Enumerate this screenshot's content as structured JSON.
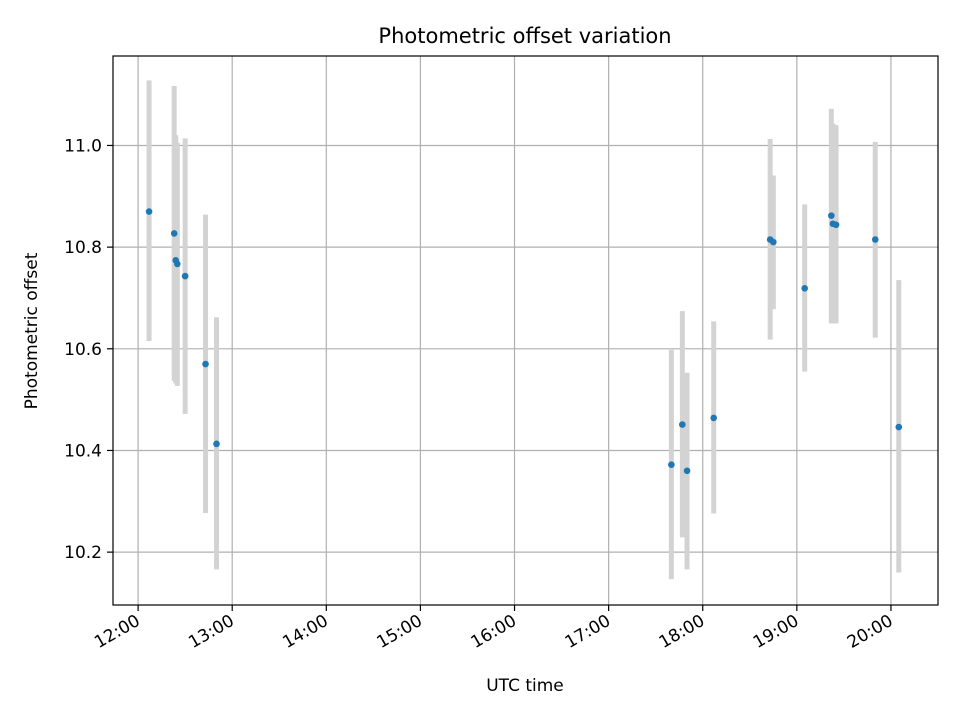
{
  "chart_data": {
    "type": "scatter",
    "title": "Photometric offset variation",
    "xlabel": "UTC time",
    "ylabel": "Photometric offset",
    "x_kind": "time",
    "xlim": [
      "11:44",
      "20:30"
    ],
    "ylim": [
      10.096,
      11.176
    ],
    "x_ticks": [
      "12:00",
      "13:00",
      "14:00",
      "15:00",
      "16:00",
      "17:00",
      "18:00",
      "19:00",
      "20:00"
    ],
    "y_ticks": [
      "10.2",
      "10.4",
      "10.6",
      "10.8",
      "11.0"
    ],
    "grid": true,
    "marker_color": "#1f77b4",
    "errorbar_color": "#d3d3d3",
    "points": [
      {
        "time": "12:07",
        "y": 10.87,
        "lo": 10.615,
        "hi": 11.128
      },
      {
        "time": "12:23",
        "y": 10.827,
        "lo": 10.537,
        "hi": 11.117
      },
      {
        "time": "12:24",
        "y": 10.774,
        "lo": 10.532,
        "hi": 11.02
      },
      {
        "time": "12:25",
        "y": 10.767,
        "lo": 10.527,
        "hi": 11.005
      },
      {
        "time": "12:30",
        "y": 10.743,
        "lo": 10.472,
        "hi": 11.014
      },
      {
        "time": "12:43",
        "y": 10.57,
        "lo": 10.277,
        "hi": 10.864
      },
      {
        "time": "12:50",
        "y": 10.413,
        "lo": 10.166,
        "hi": 10.662
      },
      {
        "time": "17:40",
        "y": 10.372,
        "lo": 10.147,
        "hi": 10.598
      },
      {
        "time": "17:47",
        "y": 10.451,
        "lo": 10.229,
        "hi": 10.674
      },
      {
        "time": "17:50",
        "y": 10.36,
        "lo": 10.166,
        "hi": 10.553
      },
      {
        "time": "18:07",
        "y": 10.464,
        "lo": 10.276,
        "hi": 10.654
      },
      {
        "time": "18:43",
        "y": 10.815,
        "lo": 10.618,
        "hi": 11.013
      },
      {
        "time": "18:45",
        "y": 10.81,
        "lo": 10.678,
        "hi": 10.941
      },
      {
        "time": "19:05",
        "y": 10.719,
        "lo": 10.555,
        "hi": 10.884
      },
      {
        "time": "19:22",
        "y": 10.862,
        "lo": 10.65,
        "hi": 11.072
      },
      {
        "time": "19:23",
        "y": 10.846,
        "lo": 10.65,
        "hi": 11.043
      },
      {
        "time": "19:25",
        "y": 10.844,
        "lo": 10.65,
        "hi": 11.04
      },
      {
        "time": "19:50",
        "y": 10.815,
        "lo": 10.622,
        "hi": 11.007
      },
      {
        "time": "20:05",
        "y": 10.446,
        "lo": 10.16,
        "hi": 10.735
      }
    ]
  }
}
